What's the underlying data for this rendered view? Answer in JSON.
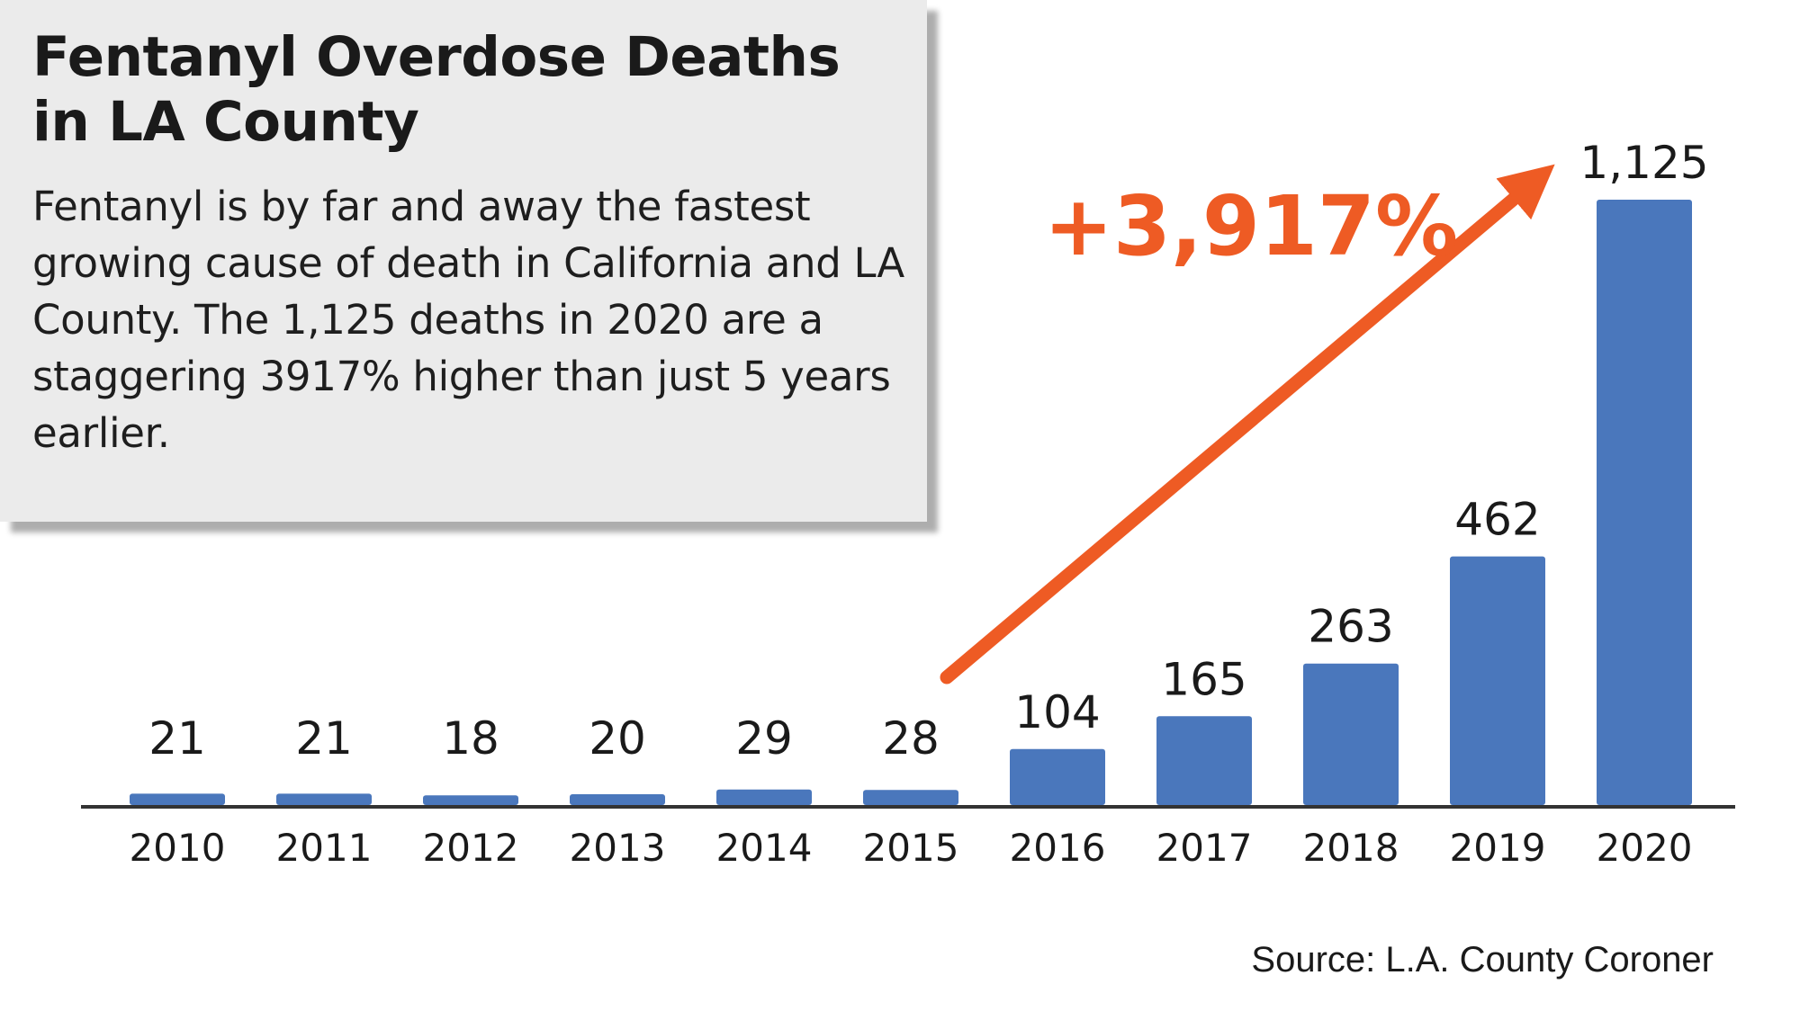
{
  "colors": {
    "bar": "#4a77bc",
    "accent": "#ee5b24",
    "axis": "#333333",
    "text": "#1a1a1a",
    "box_bg": "#ebebeb"
  },
  "info": {
    "title": "Fentanyl Overdose Deaths in LA County",
    "body": "Fentanyl is by far and away the fastest growing cause of death in California and LA County. The 1,125 deaths in 2020 are a staggering 3917% higher than just 5 years earlier."
  },
  "annotation": {
    "label": "+3,917%",
    "from_category": "2015",
    "to_category": "2020"
  },
  "source": "Source: L.A. County Coroner",
  "chart_data": {
    "type": "bar",
    "title": "Fentanyl Overdose Deaths in LA County",
    "xlabel": "",
    "ylabel": "",
    "categories": [
      "2010",
      "2011",
      "2012",
      "2013",
      "2014",
      "2015",
      "2016",
      "2017",
      "2018",
      "2019",
      "2020"
    ],
    "values": [
      21,
      21,
      18,
      20,
      29,
      28,
      104,
      165,
      263,
      462,
      1125
    ],
    "data_labels": [
      "21",
      "21",
      "18",
      "20",
      "29",
      "28",
      "104",
      "165",
      "263",
      "462",
      "1,125"
    ],
    "ylim": [
      0,
      1125
    ],
    "grid": false,
    "legend": "none"
  }
}
